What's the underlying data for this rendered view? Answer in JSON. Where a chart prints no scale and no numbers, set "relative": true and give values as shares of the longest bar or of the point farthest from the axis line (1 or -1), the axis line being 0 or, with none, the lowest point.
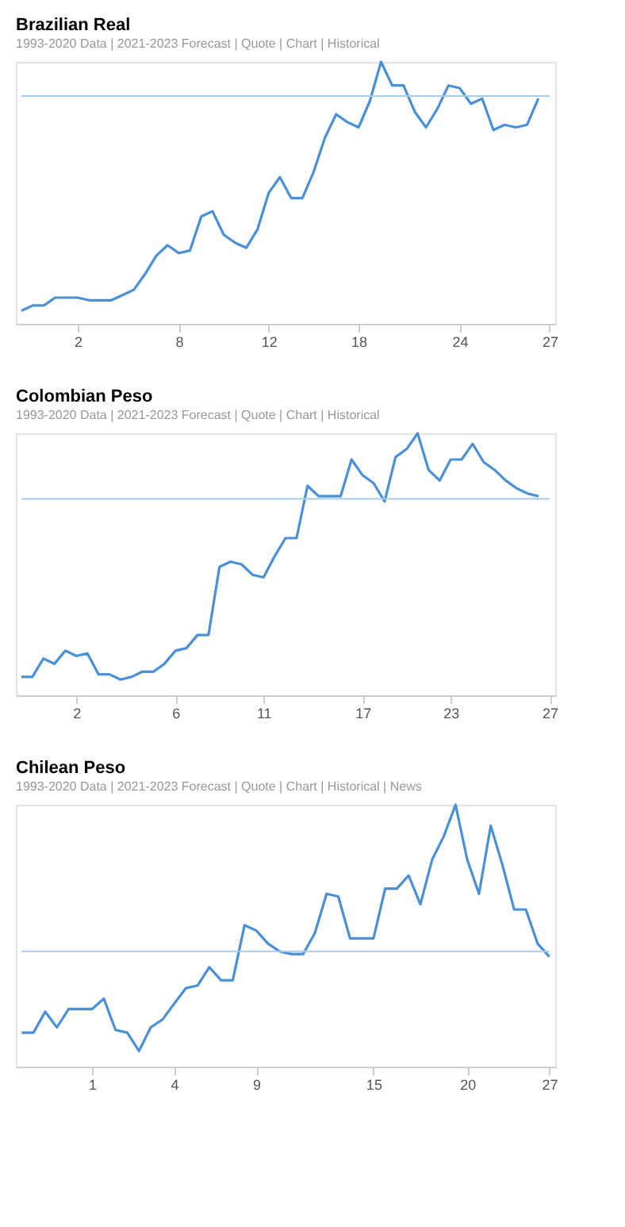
{
  "chart_data": [
    {
      "type": "line",
      "title": "Brazilian Real",
      "subtitle": "1993-2020 Data | 2021-2023 Forecast | Quote | Chart | Historical",
      "relative": true,
      "categories": [
        null,
        null,
        null,
        null,
        null,
        "2",
        null,
        null,
        null,
        null,
        null,
        null,
        null,
        null,
        "8",
        null,
        null,
        null,
        null,
        null,
        null,
        null,
        "12",
        null,
        null,
        null,
        null,
        null,
        null,
        null,
        "18",
        null,
        null,
        null,
        null,
        null,
        null,
        null,
        null,
        "24",
        null,
        null,
        null,
        null,
        null,
        null,
        null,
        "27"
      ],
      "series": [
        {
          "color": "#4a90d9",
          "values": [
            0.05,
            0.07,
            0.07,
            0.1,
            0.1,
            0.1,
            0.09,
            0.09,
            0.09,
            0.11,
            0.13,
            0.19,
            0.26,
            0.3,
            0.27,
            0.28,
            0.41,
            0.43,
            0.34,
            0.31,
            0.29,
            0.36,
            0.5,
            0.56,
            0.48,
            0.48,
            0.58,
            0.71,
            0.8,
            0.77,
            0.75,
            0.85,
            1.0,
            0.91,
            0.91,
            0.81,
            0.75,
            0.82,
            0.91,
            0.9,
            0.84,
            0.86,
            0.74,
            0.76,
            0.75,
            0.76,
            0.86,
            null
          ]
        }
      ],
      "ref_lines": [
        {
          "axis": "y",
          "value": 0.87,
          "color": "#a9cbea"
        }
      ]
    },
    {
      "type": "line",
      "title": "Colombian Peso",
      "subtitle": "1993-2020 Data | 2021-2023 Forecast | Quote | Chart | Historical",
      "relative": true,
      "categories": [
        null,
        null,
        null,
        null,
        null,
        "2",
        null,
        null,
        null,
        null,
        null,
        null,
        null,
        null,
        "6",
        null,
        null,
        null,
        null,
        null,
        null,
        null,
        "11",
        null,
        null,
        null,
        null,
        null,
        null,
        null,
        null,
        "17",
        null,
        null,
        null,
        null,
        null,
        null,
        null,
        "23",
        null,
        null,
        null,
        null,
        null,
        null,
        null,
        null,
        "27"
      ],
      "series": [
        {
          "color": "#4a90d9",
          "values": [
            0.07,
            0.07,
            0.14,
            0.12,
            0.17,
            0.15,
            0.16,
            0.08,
            0.08,
            0.06,
            0.07,
            0.09,
            0.09,
            0.12,
            0.17,
            0.18,
            0.23,
            0.23,
            0.49,
            0.51,
            0.5,
            0.46,
            0.45,
            0.53,
            0.6,
            0.6,
            0.8,
            0.76,
            0.76,
            0.76,
            0.9,
            0.84,
            0.81,
            0.74,
            0.91,
            0.94,
            1.0,
            0.86,
            0.82,
            0.9,
            0.9,
            0.96,
            0.89,
            0.86,
            0.82,
            0.79,
            0.77,
            0.76,
            null
          ]
        }
      ],
      "ref_lines": [
        {
          "axis": "y",
          "value": 0.75,
          "color": "#a9cbea"
        }
      ]
    },
    {
      "type": "line",
      "title": "Chilean Peso",
      "subtitle": "1993-2020 Data | 2021-2023 Forecast | Quote | Chart | Historical | News",
      "relative": true,
      "categories": [
        null,
        null,
        null,
        null,
        null,
        null,
        "1",
        null,
        null,
        null,
        null,
        null,
        null,
        "4",
        null,
        null,
        null,
        null,
        null,
        null,
        "9",
        null,
        null,
        null,
        null,
        null,
        null,
        null,
        null,
        null,
        "15",
        null,
        null,
        null,
        null,
        null,
        null,
        null,
        "20",
        null,
        null,
        null,
        null,
        null,
        null,
        "27"
      ],
      "series": [
        {
          "color": "#4a90d9",
          "values": [
            0.13,
            0.13,
            0.21,
            0.15,
            0.22,
            0.22,
            0.22,
            0.26,
            0.14,
            0.13,
            0.06,
            0.15,
            0.18,
            0.24,
            0.3,
            0.31,
            0.38,
            0.33,
            0.33,
            0.54,
            0.52,
            0.47,
            0.44,
            0.43,
            0.43,
            0.51,
            0.66,
            0.65,
            0.49,
            0.49,
            0.49,
            0.68,
            0.68,
            0.73,
            0.62,
            0.79,
            0.88,
            1.0,
            0.79,
            0.66,
            0.92,
            0.77,
            0.6,
            0.6,
            0.47,
            0.42
          ]
        }
      ],
      "ref_lines": [
        {
          "axis": "y",
          "value": 0.44,
          "color": "#a9cbea"
        }
      ]
    }
  ]
}
